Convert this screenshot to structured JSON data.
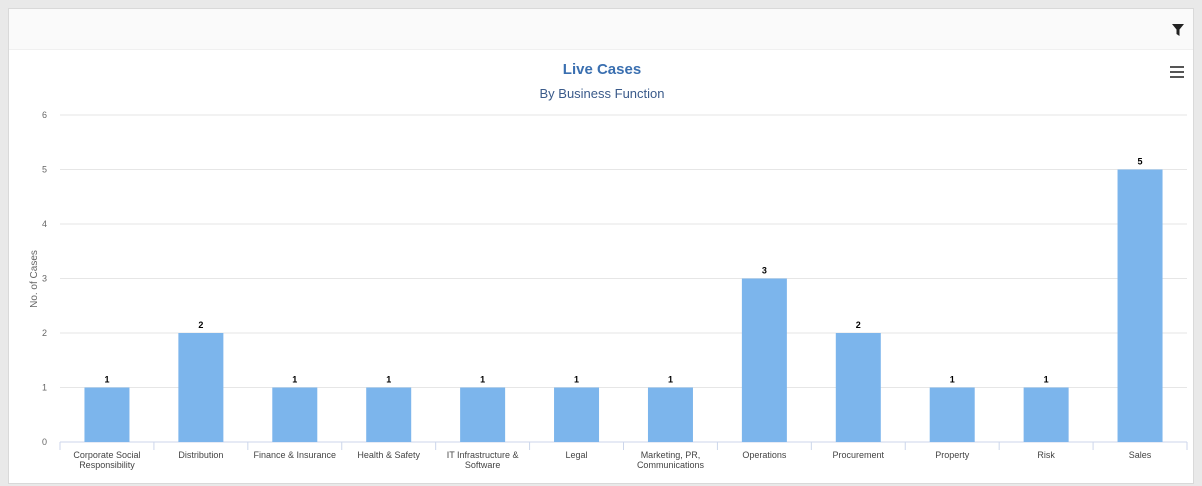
{
  "chart_data": {
    "type": "bar",
    "title": "Live Cases",
    "subtitle": "By Business Function",
    "ylabel": "No. of Cases",
    "xlabel": "",
    "ylim": [
      0,
      6
    ],
    "yticks": [
      0,
      1,
      2,
      3,
      4,
      5,
      6
    ],
    "grid": true,
    "legend": "none",
    "bar_color": "#7cb5ec",
    "categories": [
      [
        "Corporate Social",
        "Responsibility"
      ],
      [
        "Distribution"
      ],
      [
        "Finance & Insurance"
      ],
      [
        "Health & Safety"
      ],
      [
        "IT Infrastructure &",
        "Software"
      ],
      [
        "Legal"
      ],
      [
        "Marketing, PR,",
        "Communications"
      ],
      [
        "Operations"
      ],
      [
        "Procurement"
      ],
      [
        "Property"
      ],
      [
        "Risk"
      ],
      [
        "Sales"
      ]
    ],
    "values": [
      1,
      2,
      1,
      1,
      1,
      1,
      1,
      3,
      2,
      1,
      1,
      5
    ],
    "data_labels": [
      "1",
      "2",
      "1",
      "1",
      "1",
      "1",
      "1",
      "3",
      "2",
      "1",
      "1",
      "5"
    ]
  },
  "toolbar": {
    "filter_icon": "filter-icon",
    "menu_icon": "hamburger-menu-icon"
  }
}
